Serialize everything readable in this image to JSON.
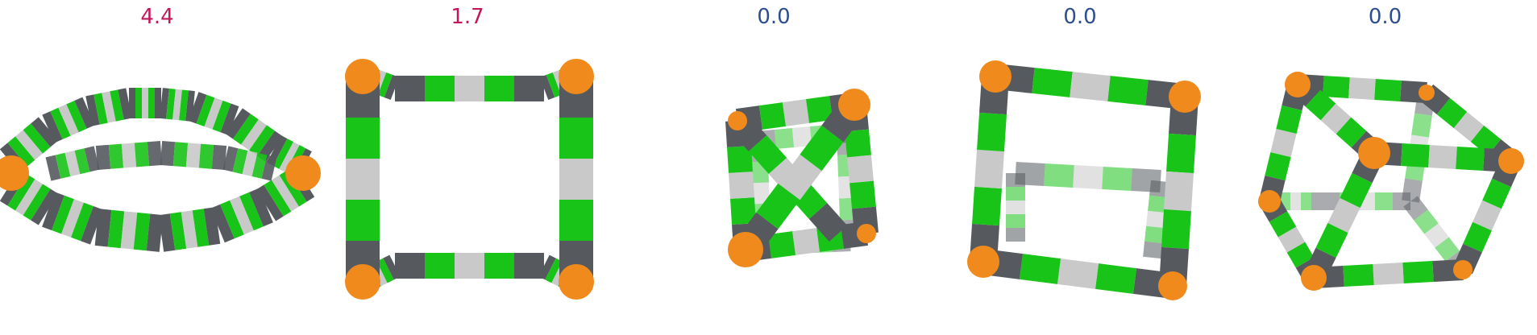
{
  "panels": [
    {
      "score": "4.4",
      "color": "#c2185b",
      "shape": "flattened-ring-cage"
    },
    {
      "score": "1.7",
      "color": "#c2185b",
      "shape": "square-frame-cage"
    },
    {
      "score": "0.0",
      "color": "#2e4e8f",
      "shape": "twisted-cube-cage"
    },
    {
      "score": "0.0",
      "color": "#2e4e8f",
      "shape": "cube-cage"
    },
    {
      "score": "0.0",
      "color": "#2e4e8f",
      "shape": "hexagonal-cube-cage"
    }
  ],
  "colors": {
    "vertex": "#f08a1c",
    "linker_dark": "#565a5f",
    "linker_green": "#19c419",
    "linker_light": "#c9c9c9"
  }
}
